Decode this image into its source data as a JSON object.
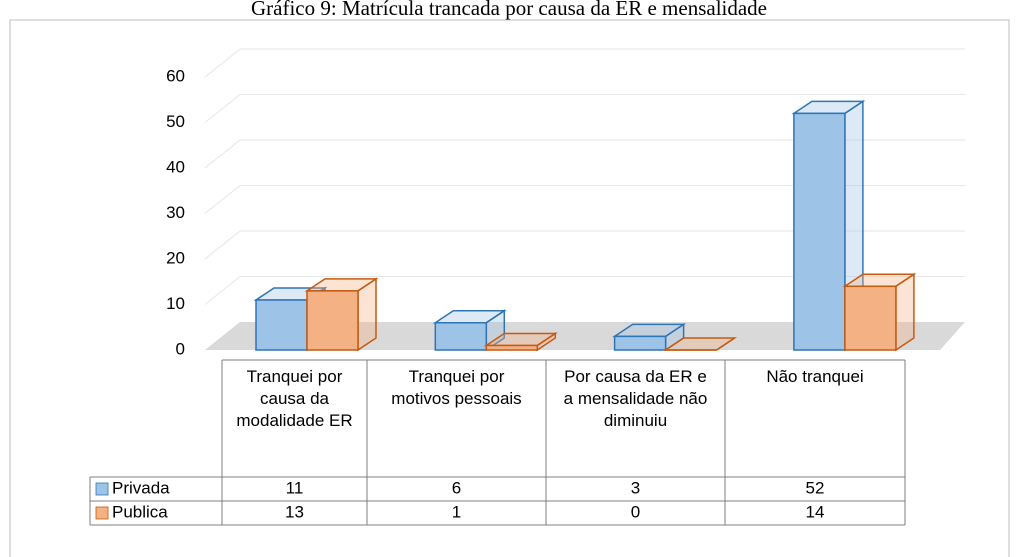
{
  "chart_data": {
    "type": "bar3d",
    "title": "Gráfico 9: Matrícula trancada por causa da ER e mensalidade",
    "categories": [
      "Tranquei por causa da modalidade ER",
      "Tranquei por motivos pessoais",
      "Por causa da ER e a mensalidade não diminuiu",
      "Não tranquei"
    ],
    "series": [
      {
        "name": "Privada",
        "color": "#9dc3e6",
        "values": [
          11,
          6,
          3,
          52
        ]
      },
      {
        "name": "Publica",
        "color": "#f4b183",
        "values": [
          13,
          1,
          0,
          14
        ]
      }
    ],
    "ylim": [
      0,
      60
    ],
    "yticks": [
      0,
      10,
      20,
      30,
      40,
      50,
      60
    ],
    "grid": true
  }
}
